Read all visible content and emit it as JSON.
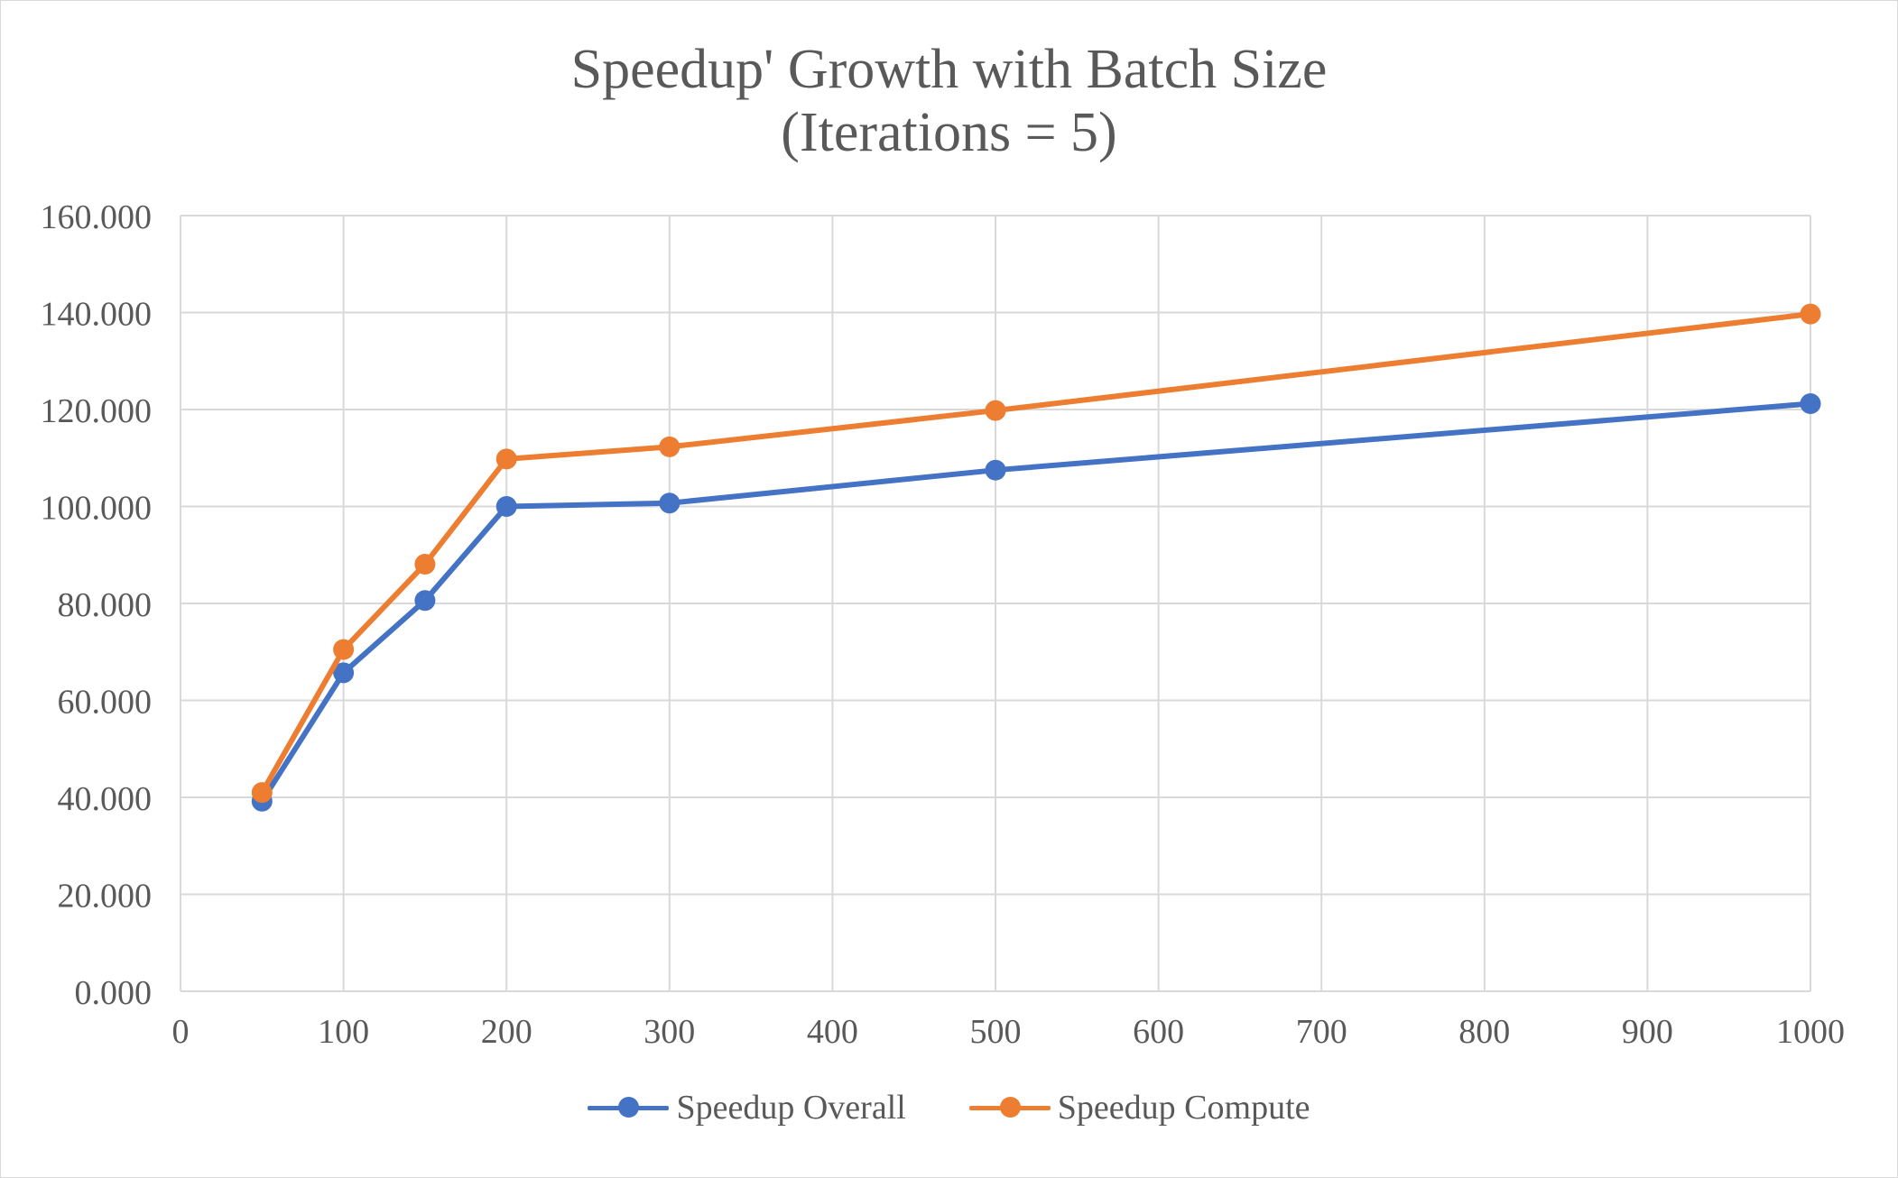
{
  "chart_data": {
    "type": "line",
    "title_line1": "Speedup' Growth with Batch Size",
    "title_line2": "(Iterations = 5)",
    "xlabel": "",
    "ylabel": "",
    "xlim": [
      0,
      1000
    ],
    "ylim": [
      0,
      160
    ],
    "x_ticks": [
      "0",
      "100",
      "200",
      "300",
      "400",
      "500",
      "600",
      "700",
      "800",
      "900",
      "1000"
    ],
    "y_ticks": [
      "0.000",
      "20.000",
      "40.000",
      "60.000",
      "80.000",
      "100.000",
      "120.000",
      "140.000",
      "160.000"
    ],
    "grid": true,
    "legend_position": "bottom",
    "x": [
      50,
      100,
      150,
      200,
      300,
      500,
      1000
    ],
    "series": [
      {
        "name": "Speedup Overall",
        "color": "#4472C4",
        "values": [
          39.2,
          65.7,
          80.6,
          100.0,
          100.7,
          107.5,
          121.2
        ]
      },
      {
        "name": "Speedup Compute",
        "color": "#ED7D31",
        "values": [
          41.0,
          70.5,
          88.1,
          109.8,
          112.3,
          119.8,
          139.7
        ]
      }
    ]
  }
}
